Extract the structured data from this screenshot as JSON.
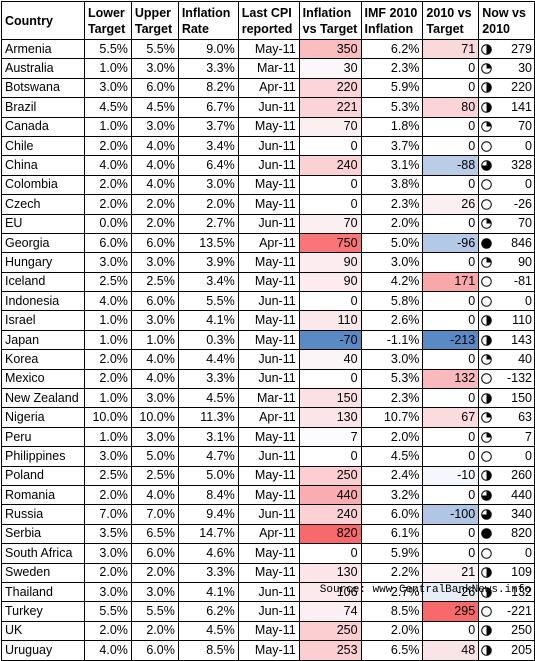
{
  "chart_data": {
    "type": "table",
    "columns": [
      "Country",
      "Lower Target",
      "Upper Target",
      "Inflation Rate",
      "Last CPI reported",
      "Inflation vs Target",
      "IMF 2010 Inflation",
      "2010 vs Target",
      "Now vs 2010"
    ],
    "header_lines": [
      [
        "Country"
      ],
      [
        "Lower",
        "Target"
      ],
      [
        "Upper",
        "Target"
      ],
      [
        "Inflation",
        "Rate"
      ],
      [
        "Last CPI",
        "reported"
      ],
      [
        "Inflation",
        "vs Target"
      ],
      [
        "IMF 2010",
        "Inflation"
      ],
      [
        "2010 vs",
        "Target"
      ],
      [
        "Now vs",
        "2010"
      ]
    ],
    "rows": [
      {
        "country": "Armenia",
        "lower": "5.5%",
        "upper": "5.5%",
        "rate": "9.0%",
        "last": "May-11",
        "ivt": 350,
        "imf": "6.2%",
        "vt2010": 71,
        "now": 279
      },
      {
        "country": "Australia",
        "lower": "1.0%",
        "upper": "3.0%",
        "rate": "3.3%",
        "last": "Mar-11",
        "ivt": 30,
        "imf": "2.3%",
        "vt2010": 0,
        "now": 30
      },
      {
        "country": "Botswana",
        "lower": "3.0%",
        "upper": "6.0%",
        "rate": "8.2%",
        "last": "Apr-11",
        "ivt": 220,
        "imf": "5.9%",
        "vt2010": 0,
        "now": 220
      },
      {
        "country": "Brazil",
        "lower": "4.5%",
        "upper": "4.5%",
        "rate": "6.7%",
        "last": "Jun-11",
        "ivt": 221,
        "imf": "5.3%",
        "vt2010": 80,
        "now": 141
      },
      {
        "country": "Canada",
        "lower": "1.0%",
        "upper": "3.0%",
        "rate": "3.7%",
        "last": "May-11",
        "ivt": 70,
        "imf": "1.8%",
        "vt2010": 0,
        "now": 70
      },
      {
        "country": "Chile",
        "lower": "2.0%",
        "upper": "4.0%",
        "rate": "3.4%",
        "last": "Jun-11",
        "ivt": 0,
        "imf": "3.7%",
        "vt2010": 0,
        "now": 0
      },
      {
        "country": "China",
        "lower": "4.0%",
        "upper": "4.0%",
        "rate": "6.4%",
        "last": "Jun-11",
        "ivt": 240,
        "imf": "3.1%",
        "vt2010": -88,
        "now": 328
      },
      {
        "country": "Colombia",
        "lower": "2.0%",
        "upper": "4.0%",
        "rate": "3.0%",
        "last": "May-11",
        "ivt": 0,
        "imf": "3.8%",
        "vt2010": 0,
        "now": 0
      },
      {
        "country": "Czech",
        "lower": "2.0%",
        "upper": "2.0%",
        "rate": "2.0%",
        "last": "May-11",
        "ivt": 0,
        "imf": "2.3%",
        "vt2010": 26,
        "now": -26
      },
      {
        "country": "EU",
        "lower": "0.0%",
        "upper": "2.0%",
        "rate": "2.7%",
        "last": "Jun-11",
        "ivt": 70,
        "imf": "2.0%",
        "vt2010": 0,
        "now": 70
      },
      {
        "country": "Georgia",
        "lower": "6.0%",
        "upper": "6.0%",
        "rate": "13.5%",
        "last": "Apr-11",
        "ivt": 750,
        "imf": "5.0%",
        "vt2010": -96,
        "now": 846
      },
      {
        "country": "Hungary",
        "lower": "3.0%",
        "upper": "3.0%",
        "rate": "3.9%",
        "last": "May-11",
        "ivt": 90,
        "imf": "3.0%",
        "vt2010": 0,
        "now": 90
      },
      {
        "country": "Iceland",
        "lower": "2.5%",
        "upper": "2.5%",
        "rate": "3.4%",
        "last": "May-11",
        "ivt": 90,
        "imf": "4.2%",
        "vt2010": 171,
        "now": -81
      },
      {
        "country": "Indonesia",
        "lower": "4.0%",
        "upper": "6.0%",
        "rate": "5.5%",
        "last": "Jun-11",
        "ivt": 0,
        "imf": "5.8%",
        "vt2010": 0,
        "now": 0
      },
      {
        "country": "Israel",
        "lower": "1.0%",
        "upper": "3.0%",
        "rate": "4.1%",
        "last": "May-11",
        "ivt": 110,
        "imf": "2.6%",
        "vt2010": 0,
        "now": 110
      },
      {
        "country": "Japan",
        "lower": "1.0%",
        "upper": "1.0%",
        "rate": "0.3%",
        "last": "May-11",
        "ivt": -70,
        "imf": "-1.1%",
        "vt2010": -213,
        "now": 143
      },
      {
        "country": "Korea",
        "lower": "2.0%",
        "upper": "4.0%",
        "rate": "4.4%",
        "last": "Jun-11",
        "ivt": 40,
        "imf": "3.0%",
        "vt2010": 0,
        "now": 40
      },
      {
        "country": "Mexico",
        "lower": "2.0%",
        "upper": "4.0%",
        "rate": "3.3%",
        "last": "Jun-11",
        "ivt": 0,
        "imf": "5.3%",
        "vt2010": 132,
        "now": -132
      },
      {
        "country": "New Zealand",
        "lower": "1.0%",
        "upper": "3.0%",
        "rate": "4.5%",
        "last": "Mar-11",
        "ivt": 150,
        "imf": "2.3%",
        "vt2010": 0,
        "now": 150
      },
      {
        "country": "Nigeria",
        "lower": "10.0%",
        "upper": "10.0%",
        "rate": "11.3%",
        "last": "Apr-11",
        "ivt": 130,
        "imf": "10.7%",
        "vt2010": 67,
        "now": 63
      },
      {
        "country": "Peru",
        "lower": "1.0%",
        "upper": "3.0%",
        "rate": "3.1%",
        "last": "May-11",
        "ivt": 7,
        "imf": "2.0%",
        "vt2010": 0,
        "now": 7
      },
      {
        "country": "Philippines",
        "lower": "3.0%",
        "upper": "5.0%",
        "rate": "4.7%",
        "last": "Jun-11",
        "ivt": 0,
        "imf": "4.5%",
        "vt2010": 0,
        "now": 0
      },
      {
        "country": "Poland",
        "lower": "2.5%",
        "upper": "2.5%",
        "rate": "5.0%",
        "last": "May-11",
        "ivt": 250,
        "imf": "2.4%",
        "vt2010": -10,
        "now": 260
      },
      {
        "country": "Romania",
        "lower": "2.0%",
        "upper": "4.0%",
        "rate": "8.4%",
        "last": "May-11",
        "ivt": 440,
        "imf": "3.2%",
        "vt2010": 0,
        "now": 440
      },
      {
        "country": "Russia",
        "lower": "7.0%",
        "upper": "7.0%",
        "rate": "9.4%",
        "last": "Jun-11",
        "ivt": 240,
        "imf": "6.0%",
        "vt2010": -100,
        "now": 340
      },
      {
        "country": "Serbia",
        "lower": "3.5%",
        "upper": "6.5%",
        "rate": "14.7%",
        "last": "Apr-11",
        "ivt": 820,
        "imf": "6.1%",
        "vt2010": 0,
        "now": 820
      },
      {
        "country": "South Africa",
        "lower": "3.0%",
        "upper": "6.0%",
        "rate": "4.6%",
        "last": "May-11",
        "ivt": 0,
        "imf": "5.9%",
        "vt2010": 0,
        "now": 0
      },
      {
        "country": "Sweden",
        "lower": "2.0%",
        "upper": "2.0%",
        "rate": "3.3%",
        "last": "May-11",
        "ivt": 130,
        "imf": "2.2%",
        "vt2010": 21,
        "now": 109
      },
      {
        "country": "Thailand",
        "lower": "3.0%",
        "upper": "3.0%",
        "rate": "4.1%",
        "last": "Jun-11",
        "ivt": 106,
        "imf": "2.7%",
        "vt2010": -26,
        "now": 132
      },
      {
        "country": "Turkey",
        "lower": "5.5%",
        "upper": "5.5%",
        "rate": "6.2%",
        "last": "Jun-11",
        "ivt": 74,
        "imf": "8.5%",
        "vt2010": 295,
        "now": -221
      },
      {
        "country": "UK",
        "lower": "2.0%",
        "upper": "2.0%",
        "rate": "4.5%",
        "last": "May-11",
        "ivt": 250,
        "imf": "2.0%",
        "vt2010": 0,
        "now": 250
      },
      {
        "country": "Uruguay",
        "lower": "4.0%",
        "upper": "6.0%",
        "rate": "8.5%",
        "last": "May-11",
        "ivt": 253,
        "imf": "6.5%",
        "vt2010": 48,
        "now": 205
      }
    ],
    "colors": {
      "positive": "#f8696b",
      "negative": "#5a8ac6",
      "neutral": "#fcfcff"
    },
    "source": "Source: www.CentralBankNews.info"
  }
}
